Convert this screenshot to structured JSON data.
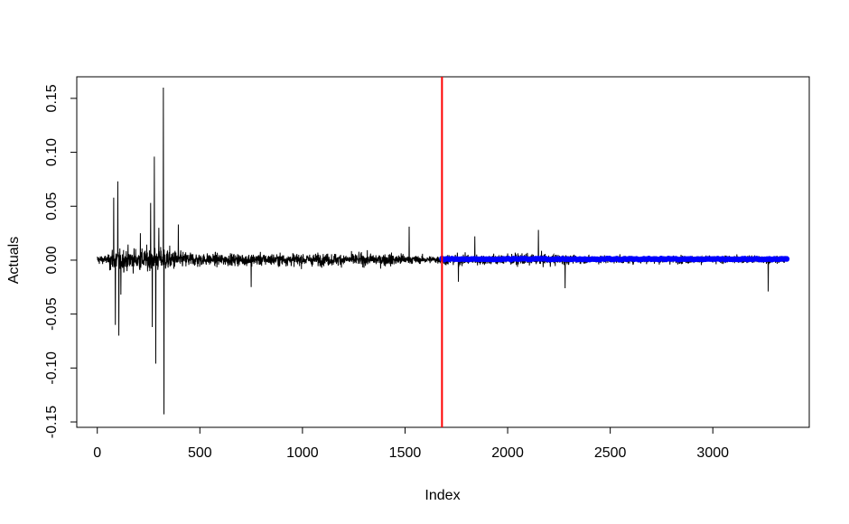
{
  "chart_data": {
    "type": "line",
    "title": "",
    "xlabel": "Index",
    "ylabel": "Actuals",
    "xlim": [
      -100,
      3470
    ],
    "ylim": [
      -0.155,
      0.17
    ],
    "x_ticks": [
      0,
      500,
      1000,
      1500,
      2000,
      2500,
      3000
    ],
    "x_tick_labels": [
      "0",
      "500",
      "1000",
      "1500",
      "2000",
      "2500",
      "3000"
    ],
    "y_ticks": [
      -0.15,
      -0.1,
      -0.05,
      0.0,
      0.05,
      0.1,
      0.15
    ],
    "y_tick_labels": [
      "-0.15",
      "-0.10",
      "-0.05",
      "0.00",
      "0.05",
      "0.10",
      "0.15"
    ],
    "grid": false,
    "series": [
      {
        "values_count": 3360,
        "color": "#000000",
        "style": "line",
        "spikes": [
          {
            "x": 80,
            "y": 0.058
          },
          {
            "x": 88,
            "y": -0.06
          },
          {
            "x": 100,
            "y": 0.073
          },
          {
            "x": 105,
            "y": -0.07
          },
          {
            "x": 115,
            "y": -0.032
          },
          {
            "x": 210,
            "y": 0.025
          },
          {
            "x": 260,
            "y": 0.053
          },
          {
            "x": 268,
            "y": -0.062
          },
          {
            "x": 278,
            "y": 0.096
          },
          {
            "x": 285,
            "y": -0.096
          },
          {
            "x": 300,
            "y": 0.03
          },
          {
            "x": 322,
            "y": 0.16
          },
          {
            "x": 325,
            "y": -0.143
          },
          {
            "x": 395,
            "y": 0.033
          },
          {
            "x": 750,
            "y": -0.025
          },
          {
            "x": 1520,
            "y": 0.031
          },
          {
            "x": 1760,
            "y": -0.02
          },
          {
            "x": 1840,
            "y": 0.022
          },
          {
            "x": 2150,
            "y": 0.028
          },
          {
            "x": 2280,
            "y": -0.026
          },
          {
            "x": 3270,
            "y": -0.029
          }
        ]
      },
      {
        "x_start": 1680,
        "x_end": 3360,
        "value": 0.001,
        "color": "#0000ff",
        "style": "points"
      }
    ],
    "vline": {
      "x": 1680,
      "color": "#ff0000"
    }
  }
}
